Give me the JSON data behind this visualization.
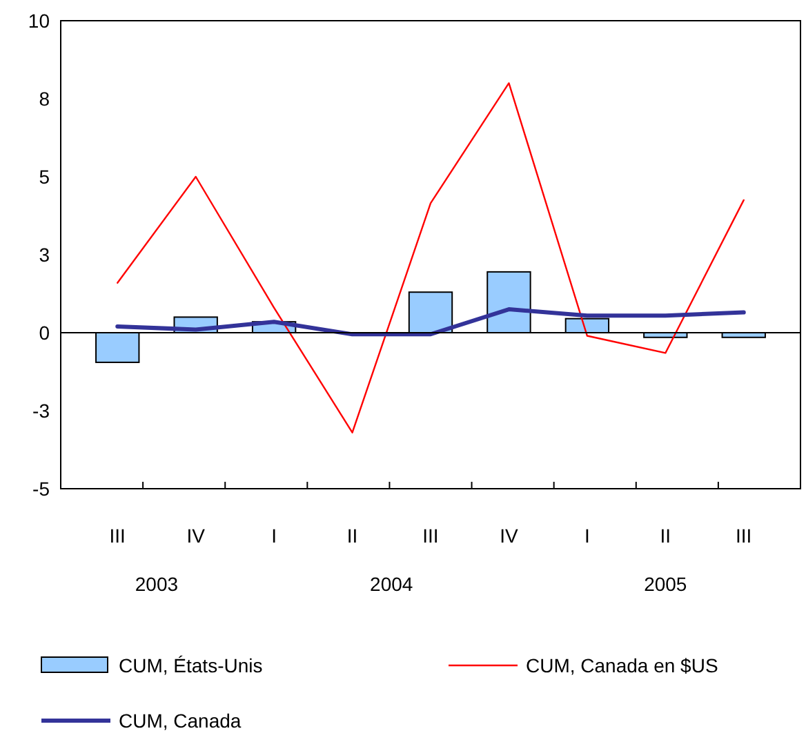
{
  "chart_data": {
    "type": "bar",
    "categories": [
      "III",
      "IV",
      "I",
      "II",
      "III",
      "IV",
      "I",
      "II",
      "III"
    ],
    "series": [
      {
        "name": "CUM, États-Unis",
        "color": "#99ccff",
        "values": [
          -0.95,
          0.5,
          0.35,
          null,
          1.3,
          1.95,
          0.45,
          -0.15,
          -0.15
        ]
      },
      {
        "name": "CUM, Canada en $US",
        "type": "line",
        "color": "#ff0000",
        "values": [
          1.6,
          5.0,
          0.8,
          -3.2,
          4.15,
          8.0,
          -0.1,
          -0.65,
          4.25
        ]
      },
      {
        "name": "CUM, Canada",
        "type": "line",
        "color": "#333399",
        "values": [
          0.2,
          0.1,
          0.35,
          -0.05,
          -0.05,
          0.75,
          0.55,
          0.55,
          0.65
        ]
      }
    ],
    "ylim": [
      -5,
      10
    ],
    "yticks": [
      -5,
      {
        "value": -2.5,
        "label": "-3"
      },
      0,
      {
        "value": 2.5,
        "label": "3"
      },
      5,
      {
        "value": 7.5,
        "label": "8"
      },
      10
    ],
    "annotations": [
      "2003",
      "2004",
      "2005"
    ],
    "legend": "bottom"
  }
}
